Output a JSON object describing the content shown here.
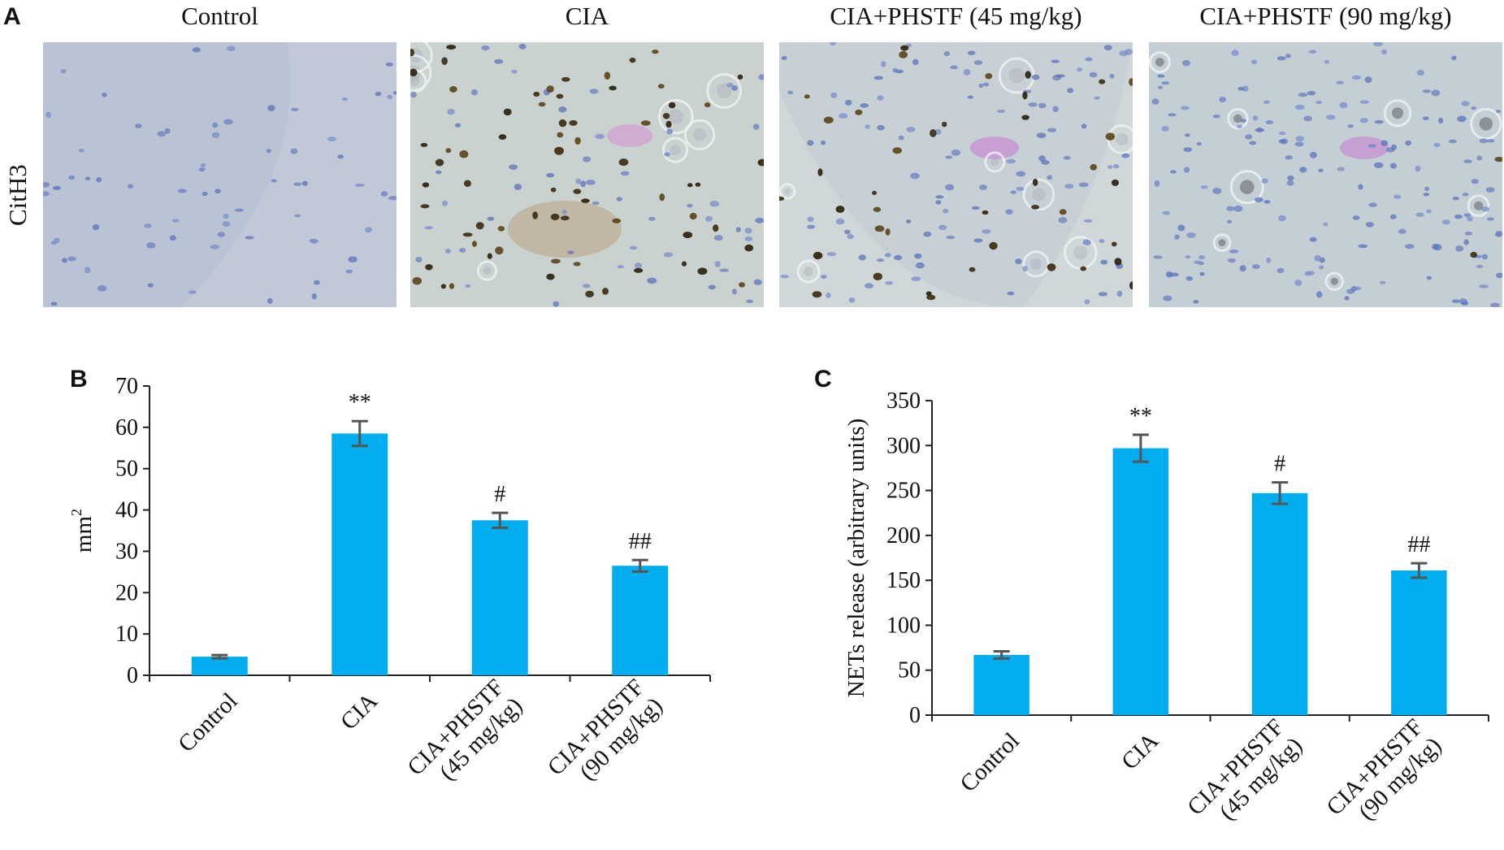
{
  "panel_a": {
    "letter": "A",
    "row_label": "CitH3",
    "images": [
      {
        "title": "Control",
        "stain": "light",
        "brown_cells": 0
      },
      {
        "title": "CIA",
        "stain": "heavy",
        "brown_cells": 70
      },
      {
        "title": "CIA+PHSTF (45 mg/kg)",
        "stain": "medium",
        "brown_cells": 40
      },
      {
        "title": "CIA+PHSTF (90 mg/kg)",
        "stain": "faint",
        "brown_cells": 2
      }
    ]
  },
  "colors": {
    "bar": "#00aeef",
    "error_bar": "#555555",
    "axis": "#222222"
  },
  "chart_data": [
    {
      "letter": "B",
      "type": "bar",
      "categories": [
        "Control",
        "CIA",
        "CIA+PHSTF\n(45 mg/kg)",
        "CIA+PHSTF\n(90 mg/kg)"
      ],
      "values": [
        4.5,
        58.5,
        37.5,
        26.5
      ],
      "errors": [
        0.4,
        3.0,
        1.8,
        1.4
      ],
      "annotations": [
        "",
        "**",
        "#",
        "##"
      ],
      "ylabel": "mm",
      "ylabel_superscript": "2",
      "ylim": [
        0,
        70
      ],
      "yticks": [
        0,
        10,
        20,
        30,
        40,
        50,
        60,
        70
      ]
    },
    {
      "letter": "C",
      "type": "bar",
      "categories": [
        "Control",
        "CIA",
        "CIA+PHSTF\n(45 mg/kg)",
        "CIA+PHSTF\n(90 mg/kg)"
      ],
      "values": [
        67,
        297,
        247,
        161
      ],
      "errors": [
        4,
        15,
        12,
        8
      ],
      "annotations": [
        "",
        "**",
        "#",
        "##"
      ],
      "ylabel": "NETs release (arbitrary units)",
      "ylabel_superscript": "",
      "ylim": [
        0,
        350
      ],
      "yticks": [
        0,
        50,
        100,
        150,
        200,
        250,
        300,
        350
      ]
    }
  ]
}
